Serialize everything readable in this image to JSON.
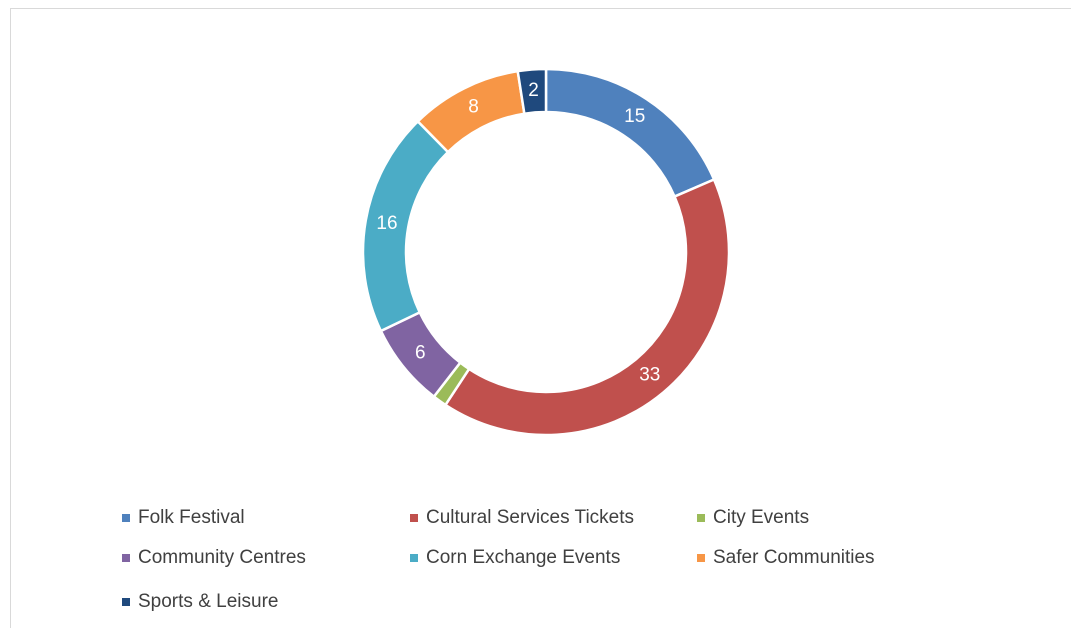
{
  "chart_data": {
    "type": "doughnut",
    "series": [
      {
        "name": "Folk Festival",
        "color": "#4f81bd",
        "values": [
          15
        ]
      },
      {
        "name": "Cultural Services Tickets",
        "color": "#c0504d",
        "values": [
          33
        ]
      },
      {
        "name": "City Events",
        "color": "#9bbb59",
        "values": [
          1
        ]
      },
      {
        "name": "Community Centres",
        "color": "#8064a2",
        "values": [
          6
        ]
      },
      {
        "name": "Corn Exchange Events",
        "color": "#4bacc6",
        "values": [
          16
        ]
      },
      {
        "name": "Safer Communities",
        "color": "#f79646",
        "values": [
          8
        ]
      },
      {
        "name": "Sports & Leisure",
        "color": "#1f497d",
        "values": [
          2
        ]
      }
    ],
    "legend": "bottom"
  }
}
